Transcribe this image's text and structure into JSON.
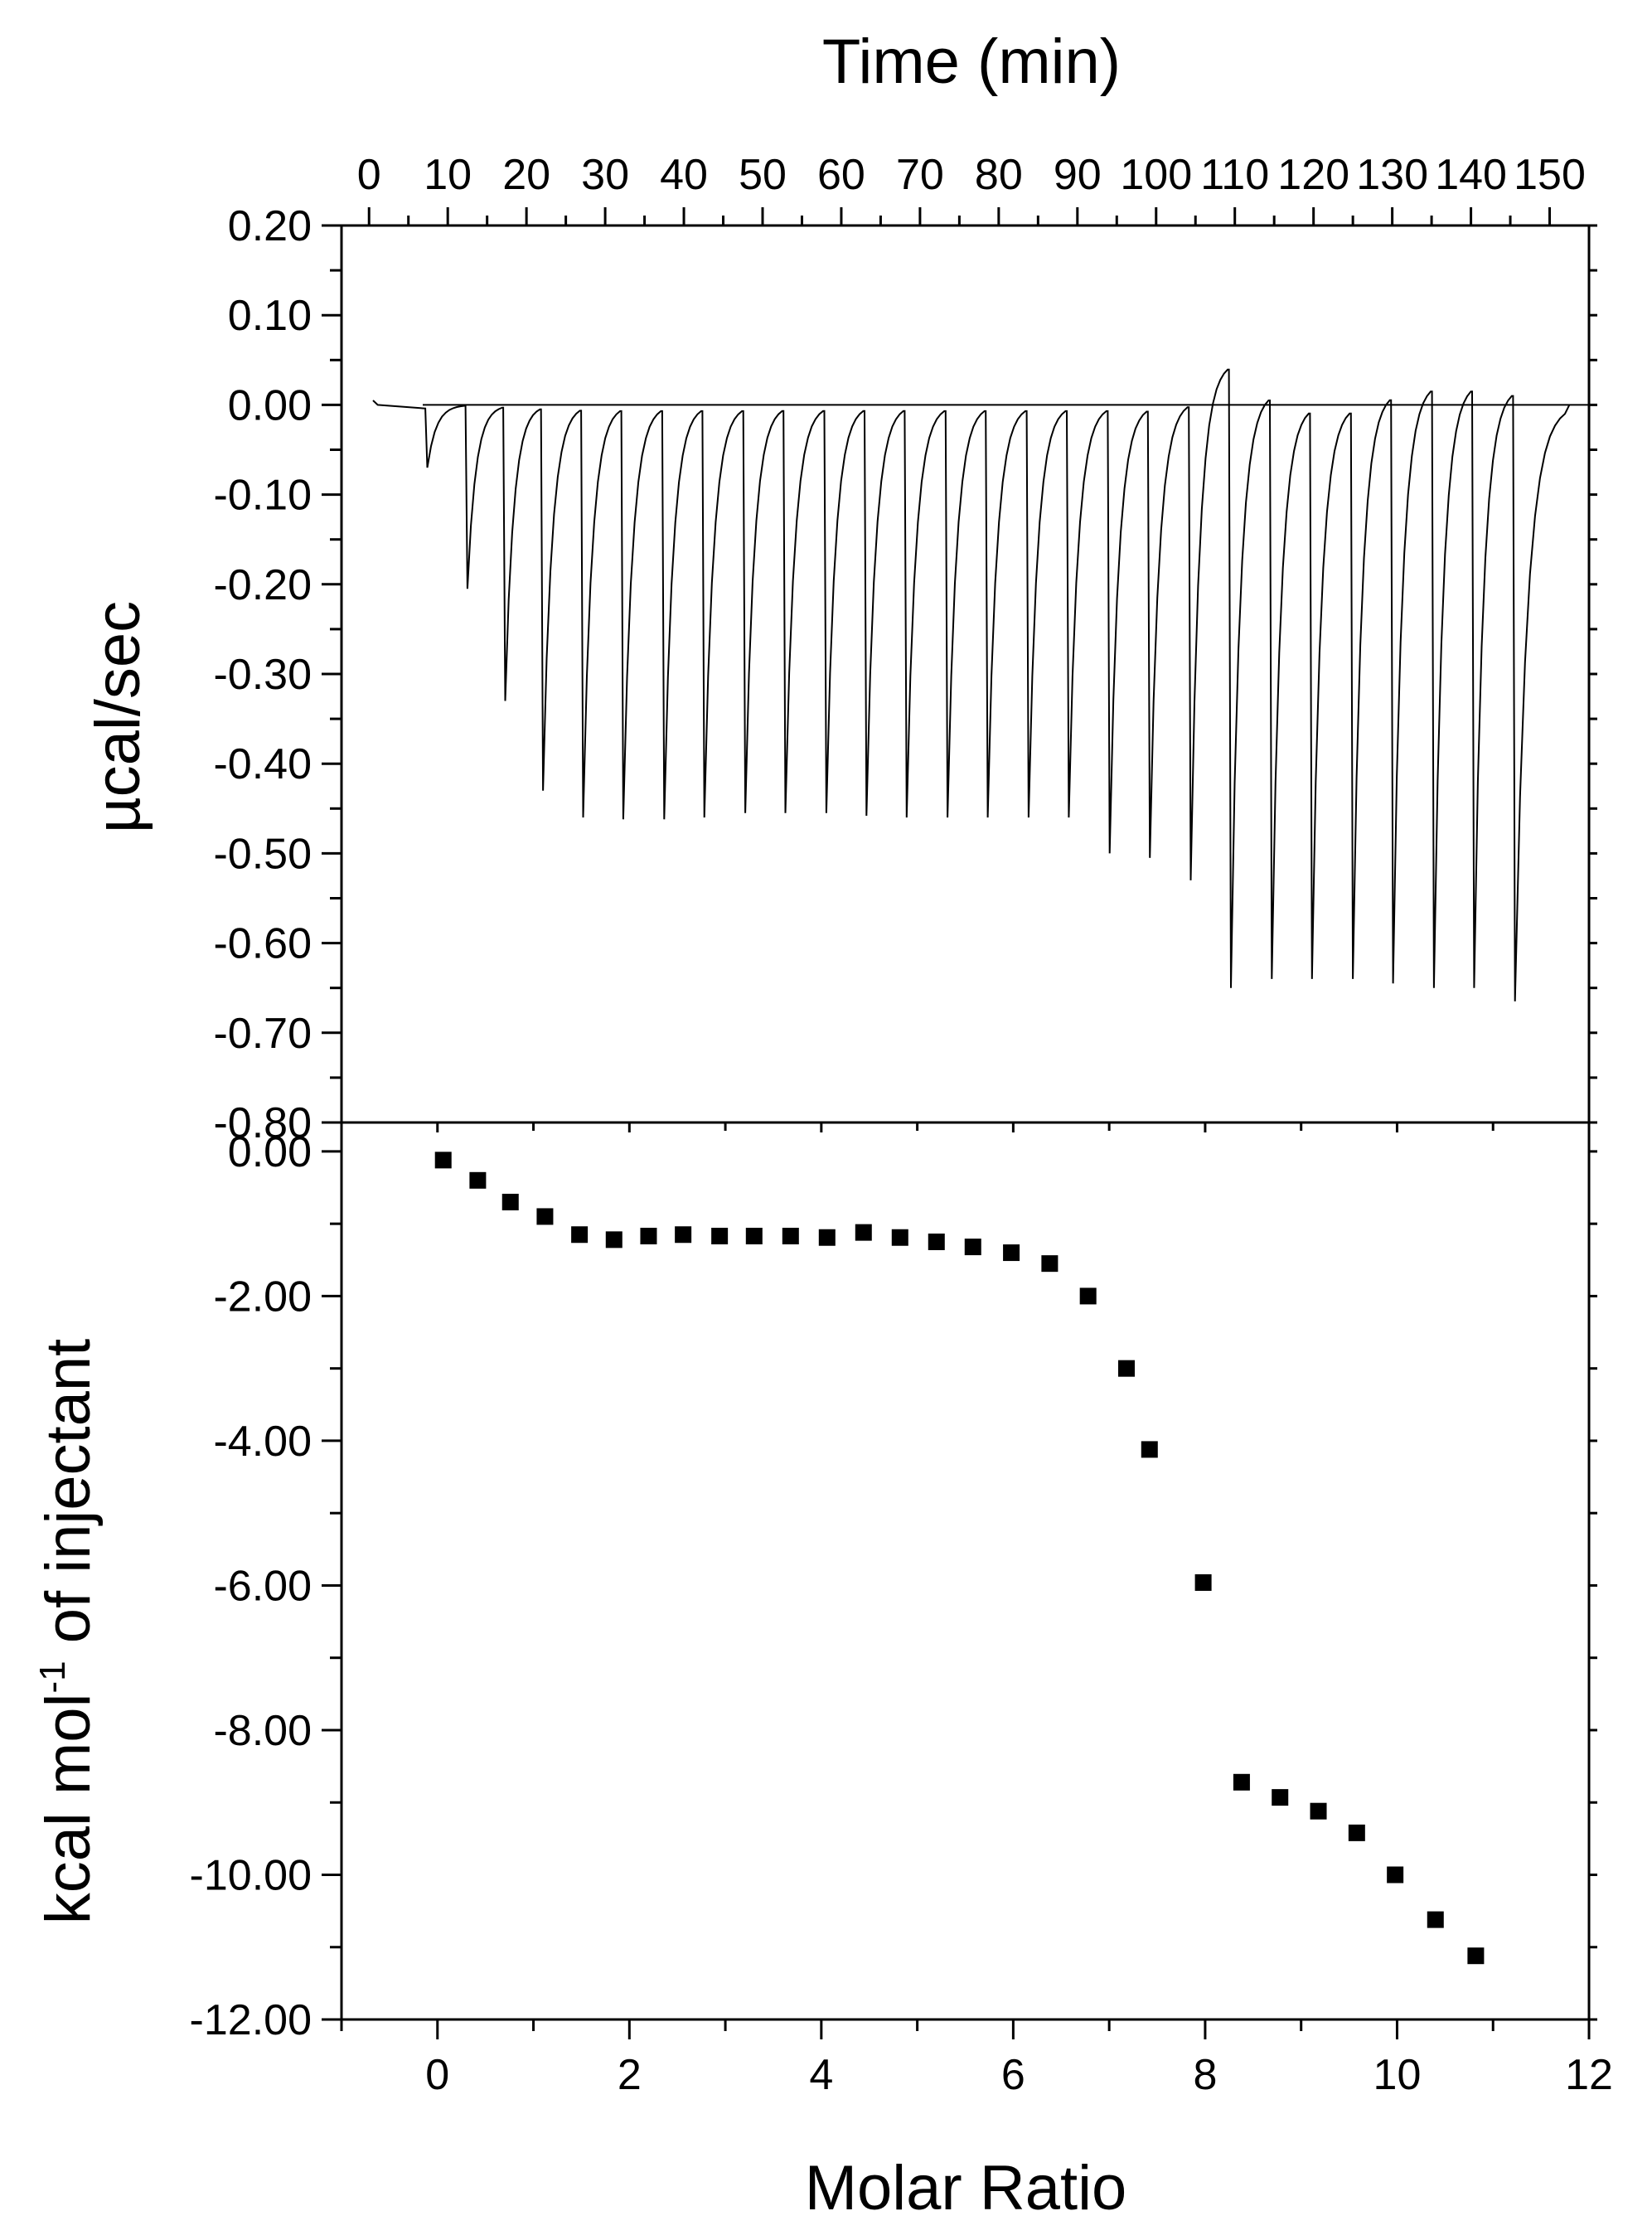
{
  "chart_data": [
    {
      "type": "line",
      "panel": "top",
      "title": "",
      "xlabel": "Time (min)",
      "ylabel": "µcal/sec",
      "xlim": [
        -3.5,
        155
      ],
      "ylim": [
        -0.8,
        0.2
      ],
      "xticks": [
        0,
        10,
        20,
        30,
        40,
        50,
        60,
        70,
        80,
        90,
        100,
        110,
        120,
        130,
        140,
        150
      ],
      "xtick_labels": [
        "0",
        "10",
        "20",
        "30",
        "40",
        "50",
        "60",
        "70",
        "80",
        "90",
        "100",
        "110",
        "120",
        "130",
        "140",
        "150"
      ],
      "yticks": [
        0.2,
        0.1,
        0.0,
        -0.1,
        -0.2,
        -0.3,
        -0.4,
        -0.5,
        -0.6,
        -0.7,
        -0.8
      ],
      "ytick_labels": [
        "0.20",
        "0.10",
        "0.00",
        "-0.10",
        "-0.20",
        "-0.30",
        "-0.40",
        "-0.50",
        "-0.60",
        "-0.70",
        "-0.80"
      ],
      "baseline": 0.0,
      "trace_start": [
        0.5,
        0.005
      ],
      "trace_end": [
        152.5,
        0.0
      ],
      "injections": [
        {
          "t": 7.4,
          "min": -0.07,
          "recover": 0.0
        },
        {
          "t": 12.5,
          "min": -0.205,
          "recover": 0.0
        },
        {
          "t": 17.3,
          "min": -0.33,
          "recover": 0.0
        },
        {
          "t": 22.1,
          "min": -0.43,
          "recover": 0.0
        },
        {
          "t": 27.2,
          "min": -0.46,
          "recover": 0.0
        },
        {
          "t": 32.3,
          "min": -0.462,
          "recover": 0.0
        },
        {
          "t": 37.5,
          "min": -0.462,
          "recover": 0.0
        },
        {
          "t": 42.6,
          "min": -0.46,
          "recover": 0.0
        },
        {
          "t": 47.8,
          "min": -0.455,
          "recover": 0.0
        },
        {
          "t": 52.9,
          "min": -0.455,
          "recover": 0.0
        },
        {
          "t": 58.1,
          "min": -0.455,
          "recover": 0.0
        },
        {
          "t": 63.2,
          "min": -0.458,
          "recover": 0.0
        },
        {
          "t": 68.3,
          "min": -0.46,
          "recover": 0.0
        },
        {
          "t": 73.5,
          "min": -0.46,
          "recover": 0.0
        },
        {
          "t": 78.6,
          "min": -0.46,
          "recover": 0.0
        },
        {
          "t": 83.8,
          "min": -0.46,
          "recover": 0.0
        },
        {
          "t": 88.9,
          "min": -0.46,
          "recover": 0.0
        },
        {
          "t": 94.1,
          "min": -0.5,
          "recover": 0.0
        },
        {
          "t": 99.2,
          "min": -0.505,
          "recover": 0.005
        },
        {
          "t": 104.4,
          "min": -0.53,
          "recover": 0.048
        },
        {
          "t": 109.5,
          "min": -0.65,
          "recover": 0.015
        },
        {
          "t": 114.7,
          "min": -0.64,
          "recover": 0.0
        },
        {
          "t": 119.8,
          "min": -0.64,
          "recover": 0.0
        },
        {
          "t": 125.0,
          "min": -0.64,
          "recover": 0.015
        },
        {
          "t": 130.1,
          "min": -0.645,
          "recover": 0.025
        },
        {
          "t": 135.3,
          "min": -0.65,
          "recover": 0.025
        },
        {
          "t": 140.4,
          "min": -0.65,
          "recover": 0.02
        },
        {
          "t": 145.6,
          "min": -0.665,
          "recover": 0.0
        }
      ]
    },
    {
      "type": "scatter",
      "panel": "bottom",
      "title": "",
      "xlabel": "Molar Ratio",
      "ylabel_main": "kcal mol",
      "ylabel_sup": "-1",
      "ylabel_rest": " of injectant",
      "xlim": [
        -1,
        12
      ],
      "ylim": [
        -12,
        0.4
      ],
      "xticks": [
        0,
        2,
        4,
        6,
        8,
        10,
        12
      ],
      "xtick_labels": [
        "0",
        "2",
        "4",
        "6",
        "8",
        "10",
        "12"
      ],
      "yticks": [
        0,
        -2,
        -4,
        -6,
        -8,
        -10,
        -12
      ],
      "ytick_labels": [
        "0.00",
        "-2.00",
        "-4.00",
        "-6.00",
        "-8.00",
        "-10.00",
        "-12.00"
      ],
      "x": [
        0.06,
        0.42,
        0.76,
        1.12,
        1.48,
        1.84,
        2.2,
        2.56,
        2.94,
        3.3,
        3.68,
        4.06,
        4.44,
        4.82,
        5.2,
        5.58,
        5.98,
        6.38,
        6.78,
        7.18,
        7.42,
        7.98,
        8.38,
        8.78,
        9.18,
        9.58,
        9.98,
        10.4,
        10.82
      ],
      "y": [
        -0.12,
        -0.4,
        -0.7,
        -0.9,
        -1.15,
        -1.22,
        -1.17,
        -1.15,
        -1.17,
        -1.17,
        -1.17,
        -1.19,
        -1.12,
        -1.19,
        -1.25,
        -1.32,
        -1.4,
        -1.55,
        -2.0,
        -3.0,
        -4.12,
        -5.96,
        -8.72,
        -8.93,
        -9.12,
        -9.42,
        -10.0,
        -10.62,
        -11.12
      ]
    }
  ]
}
